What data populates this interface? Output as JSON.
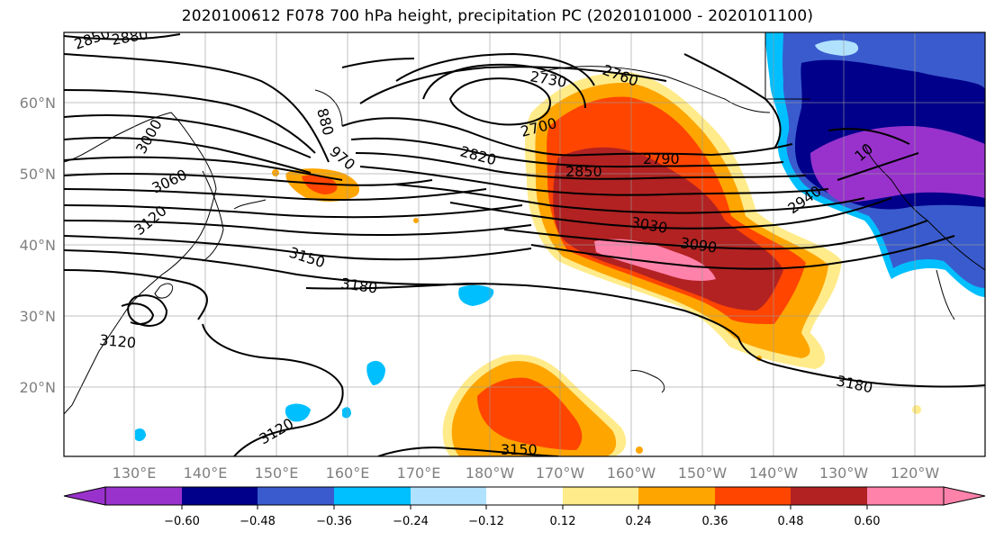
{
  "title": "2020100612 F078 700 hPa height, precipitation PC (2020101000 - 2020101100)",
  "axes": {
    "lat_labels": [
      "60°N",
      "50°N",
      "40°N",
      "30°N",
      "20°N"
    ],
    "lon_labels": [
      "130°E",
      "140°E",
      "150°E",
      "160°E",
      "170°E",
      "180°W",
      "170°W",
      "160°W",
      "150°W",
      "140°W",
      "130°W",
      "120°W"
    ]
  },
  "contour_labels": [
    "2850",
    "2880",
    "3000",
    "3060",
    "3120",
    "880",
    "970",
    "2730",
    "2760",
    "2700",
    "2820",
    "2850",
    "2790",
    "3030",
    "3090",
    "3150",
    "3180",
    "3120",
    "3120",
    "3150",
    "3180",
    "2940",
    "10"
  ],
  "colorbar": {
    "ticks": [
      "−0.60",
      "−0.48",
      "−0.36",
      "−0.24",
      "−0.12",
      "0.12",
      "0.24",
      "0.36",
      "0.48",
      "0.60"
    ],
    "colors": [
      "#9932CC",
      "#00008B",
      "#3A5BCD",
      "#00BFFF",
      "#B0E2FF",
      "#FFFFFF",
      "#FFEB8A",
      "#FFA500",
      "#FF4500",
      "#B22222",
      "#FF82AB"
    ]
  }
}
